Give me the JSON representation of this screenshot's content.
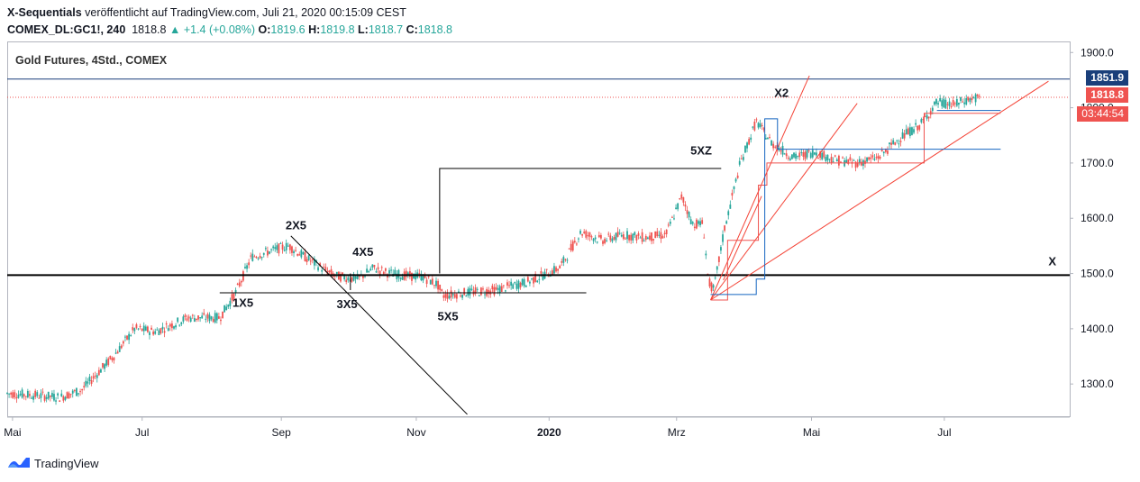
{
  "header": {
    "author": "X-Sequentials",
    "published_text": "veröffentlicht auf TradingView.com, Juli 21, 2020 00:15:09 CEST",
    "symbol": "COMEX_DL:GC1!, 240",
    "last": "1818.8",
    "change_arrow": "▲",
    "change": "+1.4 (+0.08%)",
    "o_label": "O:",
    "o_value": "1819.6",
    "h_label": "H:",
    "h_value": "1819.8",
    "l_label": "L:",
    "l_value": "1818.7",
    "c_label": "C:",
    "c_value": "1818.8"
  },
  "legend_title": "Gold Futures, 4Std., COMEX",
  "badges": {
    "upper_level": "1851.9",
    "last_price": "1818.8",
    "countdown": "03:44:54"
  },
  "colors": {
    "up": "#26a69a",
    "down": "#ef5350",
    "trend": "#f44336",
    "blue": "#1565c0",
    "navy": "#1a3f7a",
    "last_badge": "#ef5350"
  },
  "footer": {
    "brand": "TradingView"
  },
  "chart_data": {
    "type": "candlestick",
    "ylim": [
      1240,
      1920
    ],
    "y_ticks": [
      1300.0,
      1400.0,
      1500.0,
      1600.0,
      1700.0,
      1800.0,
      1900.0
    ],
    "y_tick_labels": [
      "1300.0",
      "1400.0",
      "1500.0",
      "1600.0",
      "1700.0",
      "1800.0",
      "1900.0"
    ],
    "x_tick_labels": [
      "Mai",
      "Jul",
      "Sep",
      "Nov",
      "2020",
      "Mrz",
      "Mai",
      "Jul"
    ],
    "price_path": [
      [
        0,
        1283
      ],
      [
        0.03,
        1279
      ],
      [
        0.05,
        1276
      ],
      [
        0.07,
        1289
      ],
      [
        0.1,
        1350
      ],
      [
        0.12,
        1400
      ],
      [
        0.14,
        1395
      ],
      [
        0.17,
        1420
      ],
      [
        0.2,
        1420
      ],
      [
        0.215,
        1465
      ],
      [
        0.23,
        1530
      ],
      [
        0.255,
        1545
      ],
      [
        0.265,
        1550
      ],
      [
        0.28,
        1530
      ],
      [
        0.3,
        1505
      ],
      [
        0.31,
        1495
      ],
      [
        0.33,
        1490
      ],
      [
        0.345,
        1510
      ],
      [
        0.36,
        1500
      ],
      [
        0.38,
        1495
      ],
      [
        0.39,
        1495
      ],
      [
        0.405,
        1480
      ],
      [
        0.41,
        1460
      ],
      [
        0.43,
        1465
      ],
      [
        0.46,
        1470
      ],
      [
        0.49,
        1485
      ],
      [
        0.52,
        1510
      ],
      [
        0.54,
        1575
      ],
      [
        0.56,
        1560
      ],
      [
        0.58,
        1570
      ],
      [
        0.6,
        1565
      ],
      [
        0.62,
        1570
      ],
      [
        0.635,
        1640
      ],
      [
        0.645,
        1590
      ],
      [
        0.655,
        1590
      ],
      [
        0.66,
        1485
      ],
      [
        0.665,
        1470
      ],
      [
        0.675,
        1580
      ],
      [
        0.69,
        1700
      ],
      [
        0.705,
        1775
      ],
      [
        0.72,
        1735
      ],
      [
        0.74,
        1710
      ],
      [
        0.76,
        1720
      ],
      [
        0.78,
        1705
      ],
      [
        0.8,
        1700
      ],
      [
        0.82,
        1710
      ],
      [
        0.84,
        1745
      ],
      [
        0.86,
        1770
      ],
      [
        0.875,
        1810
      ],
      [
        0.89,
        1805
      ],
      [
        0.905,
        1815
      ],
      [
        0.915,
        1818
      ]
    ],
    "annotations": [
      "1X5",
      "2X5",
      "3X5",
      "4X5",
      "5X5",
      "5XZ",
      "X2",
      "X"
    ],
    "levels": [
      {
        "name": "X",
        "value": 1497
      }
    ]
  }
}
